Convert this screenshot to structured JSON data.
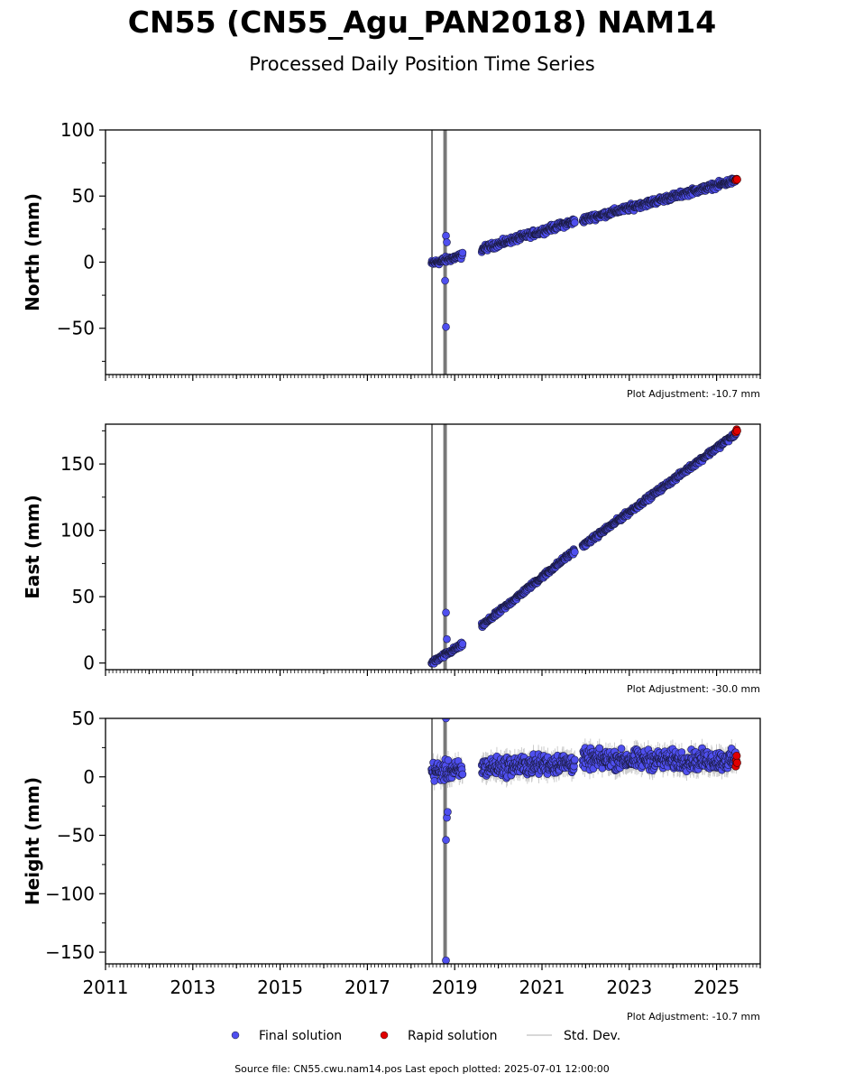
{
  "title": "CN55 (CN55_Agu_PAN2018) NAM14",
  "subtitle": "Processed Daily Position Time Series",
  "source_note": "Source file: CN55.cwu.nam14.pos  Last epoch plotted: 2025-07-01 12:00:00",
  "legend": {
    "final": "Final solution",
    "rapid": "Rapid solution",
    "std": "Std. Dev.",
    "placement": "bottom-center, below plots",
    "colors": {
      "final": "#4f4fef",
      "rapid": "#e00000",
      "std": "#cccccc"
    }
  },
  "chart_data": [
    {
      "type": "scatter",
      "ylabel": "North (mm)",
      "adjustment": "Plot Adjustment: -10.7 mm",
      "xlim": [
        2011.0,
        2026.0
      ],
      "ylim": [
        -85,
        100
      ],
      "yticks": [
        -50,
        0,
        50,
        100
      ],
      "yticklabels": [
        "−50",
        "0",
        "50",
        "100"
      ],
      "std_spikes": [
        2018.48,
        2018.76,
        2018.8
      ],
      "segments": [
        {
          "x0": 2018.47,
          "x1": 2019.18,
          "y0": -1,
          "y1": 5,
          "noise": 2,
          "std": 3
        },
        {
          "x0": 2019.62,
          "x1": 2021.75,
          "y0": 10,
          "y1": 31,
          "noise": 2,
          "std": 2
        },
        {
          "x0": 2021.93,
          "x1": 2025.45,
          "y0": 32,
          "y1": 62,
          "noise": 2,
          "std": 2
        }
      ],
      "outliers": [
        [
          2018.8,
          -49
        ],
        [
          2018.78,
          -14
        ],
        [
          2018.8,
          20
        ],
        [
          2018.82,
          15
        ]
      ],
      "rapid": [
        [
          2025.44,
          62
        ],
        [
          2025.46,
          63
        ],
        [
          2025.47,
          62.5
        ]
      ]
    },
    {
      "type": "scatter",
      "ylabel": "East (mm)",
      "adjustment": "Plot Adjustment: -30.0 mm",
      "xlim": [
        2011.0,
        2026.0
      ],
      "ylim": [
        -5,
        180
      ],
      "yticks": [
        0,
        50,
        100,
        150
      ],
      "yticklabels": [
        "0",
        "50",
        "100",
        "150"
      ],
      "std_spikes": [
        2018.48,
        2018.76,
        2018.8
      ],
      "segments": [
        {
          "x0": 2018.47,
          "x1": 2019.18,
          "y0": 0,
          "y1": 14,
          "noise": 1.5,
          "std": 3
        },
        {
          "x0": 2019.62,
          "x1": 2021.75,
          "y0": 28,
          "y1": 85,
          "noise": 1.5,
          "std": 2
        },
        {
          "x0": 2021.93,
          "x1": 2025.45,
          "y0": 88,
          "y1": 173,
          "noise": 1.5,
          "std": 2
        }
      ],
      "outliers": [
        [
          2018.8,
          38
        ],
        [
          2018.82,
          18
        ]
      ],
      "rapid": [
        [
          2025.44,
          174
        ],
        [
          2025.46,
          176
        ],
        [
          2025.47,
          175
        ]
      ]
    },
    {
      "type": "scatter",
      "ylabel": "Height (mm)",
      "adjustment": "Plot Adjustment: -10.7 mm",
      "xlim": [
        2011.0,
        2026.0
      ],
      "ylim": [
        -160,
        50
      ],
      "yticks": [
        -150,
        -100,
        -50,
        0,
        50
      ],
      "yticklabels": [
        "−150",
        "−100",
        "−50",
        "0",
        "50"
      ],
      "xticks": [
        2011,
        2013,
        2015,
        2017,
        2019,
        2021,
        2023,
        2025
      ],
      "xticklabels": [
        "2011",
        "2013",
        "2015",
        "2017",
        "2019",
        "2021",
        "2023",
        "2025"
      ],
      "std_spikes": [
        2018.48,
        2018.76,
        2018.8
      ],
      "segments": [
        {
          "x0": 2018.47,
          "x1": 2019.18,
          "y0": 5,
          "y1": 5,
          "noise": 7,
          "std": 8
        },
        {
          "x0": 2019.62,
          "x1": 2021.75,
          "y0": 8,
          "y1": 12,
          "noise": 7,
          "std": 8
        },
        {
          "x0": 2021.93,
          "x1": 2025.45,
          "y0": 15,
          "y1": 14,
          "noise": 7,
          "std": 8
        }
      ],
      "outliers": [
        [
          2018.8,
          -54
        ],
        [
          2018.82,
          -35
        ],
        [
          2018.84,
          -30
        ],
        [
          2018.8,
          -157
        ],
        [
          2018.8,
          50
        ]
      ],
      "rapid": [
        [
          2025.44,
          9
        ],
        [
          2025.45,
          14
        ],
        [
          2025.46,
          18
        ],
        [
          2025.47,
          12
        ]
      ]
    }
  ]
}
